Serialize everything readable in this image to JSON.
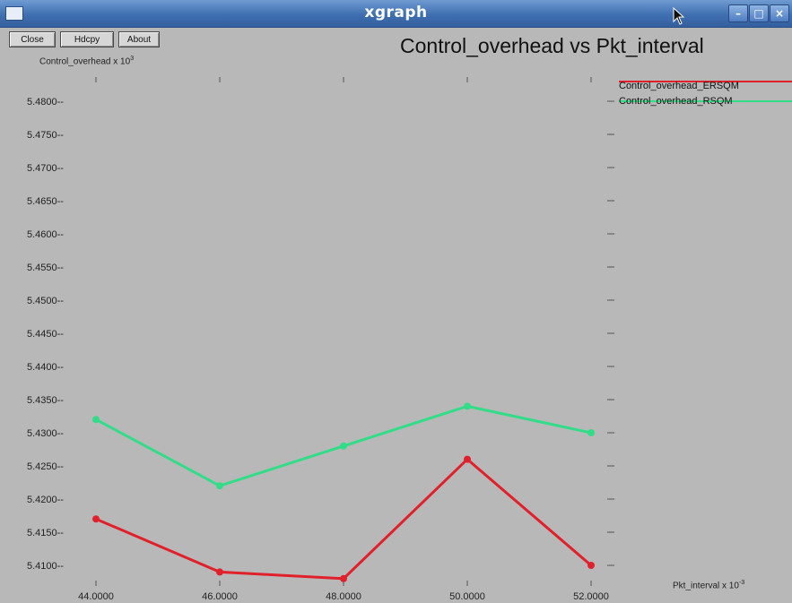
{
  "window": {
    "title": "xgraph",
    "buttons": [
      "Close",
      "Hdcpy",
      "About"
    ]
  },
  "icons": {
    "app": "window-menu-icon",
    "minimize": "minimize-icon",
    "maximize": "maximize-icon",
    "close": "close-icon",
    "cursor": "mouse-pointer-icon"
  },
  "colors": {
    "background": "#b8b8b8",
    "titlebar": "#3f6fb0",
    "series_red": "#e0202a",
    "series_green": "#33dd88"
  },
  "chart_data": {
    "type": "line",
    "title": "Control_overhead vs Pkt_interval",
    "ylabel_text": "Control_overhead x 10",
    "ylabel_exp": "3",
    "xlabel_text": "Pkt_interval x 10",
    "xlabel_exp": "-3",
    "x_ticks": [
      "44.0000",
      "46.0000",
      "48.0000",
      "50.0000",
      "52.0000"
    ],
    "y_ticks": [
      "5.4800",
      "5.4750",
      "5.4700",
      "5.4650",
      "5.4600",
      "5.4550",
      "5.4500",
      "5.4450",
      "5.4400",
      "5.4350",
      "5.4300",
      "5.4250",
      "5.4200",
      "5.4150",
      "5.4100"
    ],
    "xlim": [
      44,
      52
    ],
    "ylim": [
      5.408,
      5.48
    ],
    "grid": false,
    "legend_position": "top-right",
    "series": [
      {
        "name": "Control_overhead_ERSQM",
        "color": "#e0202a",
        "x": [
          44,
          46,
          48,
          50,
          52
        ],
        "y": [
          5.417,
          5.409,
          5.408,
          5.426,
          5.41
        ]
      },
      {
        "name": "Control_overhead_RSQM",
        "color": "#33dd88",
        "x": [
          44,
          46,
          48,
          50,
          52
        ],
        "y": [
          5.432,
          5.422,
          5.428,
          5.434,
          5.43
        ]
      }
    ]
  }
}
